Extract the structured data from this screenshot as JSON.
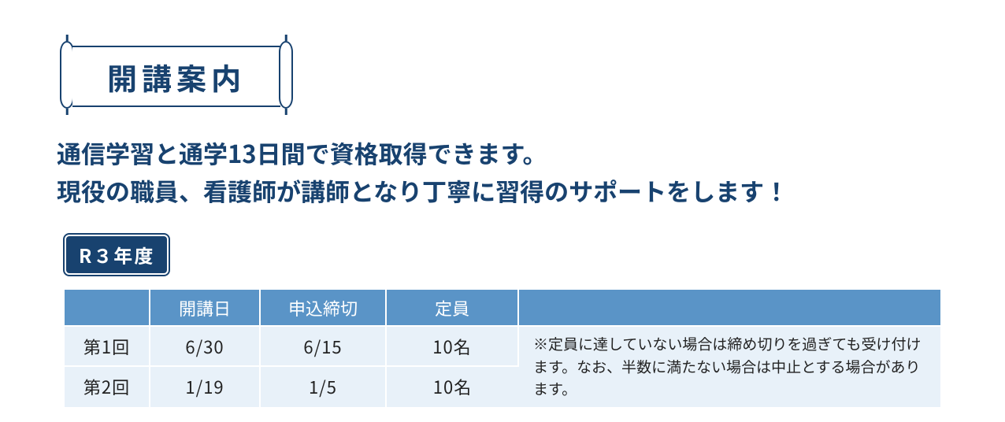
{
  "banner": {
    "title": "開講案内"
  },
  "lead": {
    "line1": "通信学習と通学13日間で資格取得できます。",
    "line2": "現役の職員、看護師が講師となり丁寧に習得のサポートをします！"
  },
  "year_badge": "R３年度",
  "table": {
    "headers": {
      "h1": "",
      "h2": "開講日",
      "h3": "申込締切",
      "h4": "定員",
      "h5": ""
    },
    "rows": [
      {
        "session": "第1回",
        "start": "6/30",
        "deadline": "6/15",
        "capacity": "10名"
      },
      {
        "session": "第2回",
        "start": "1/19",
        "deadline": "1/5",
        "capacity": "10名"
      }
    ],
    "note": "※定員に達していない場合は締め切りを過ぎても受け付けます。なお、半数に満たない場合は中止とする場合があります。"
  },
  "colors": {
    "brand_dark": "#18426f",
    "header_blue": "#5a94c7",
    "row_bg": "#e8f1f9",
    "text": "#222222",
    "white": "#ffffff"
  }
}
